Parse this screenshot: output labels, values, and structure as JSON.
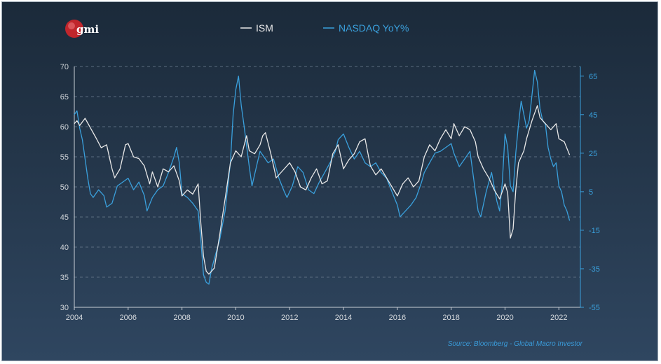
{
  "logo": {
    "text": "gmi",
    "color": "#c0262c"
  },
  "source": "Source: Bloomberg - Global Macro Investor",
  "colors": {
    "ism": "#e8e8e8",
    "nasdaq": "#3aa0dc",
    "left_axis": "#d0d4d8",
    "right_axis": "#3aa0dc",
    "grid": "#5b6d80"
  },
  "chart_data": {
    "type": "line",
    "x_ticks": [
      "2004",
      "2006",
      "2008",
      "2010",
      "2012",
      "2014",
      "2016",
      "2018",
      "2020",
      "2022"
    ],
    "y_left_ticks": [
      "30",
      "35",
      "40",
      "45",
      "50",
      "55",
      "60",
      "65",
      "70"
    ],
    "y_right_ticks": [
      "-55",
      "-35",
      "-15",
      "5",
      "25",
      "45",
      "65"
    ],
    "ylim_left": [
      30,
      70
    ],
    "ylim_right": [
      -55,
      70
    ],
    "xlim": [
      2004,
      2022.8
    ],
    "grid": "horizontal dashed",
    "legend": "top-center",
    "series": [
      {
        "name": "ISM",
        "axis": "left",
        "points": [
          [
            2004.0,
            60.5
          ],
          [
            2004.1,
            61.0
          ],
          [
            2004.2,
            60.2
          ],
          [
            2004.4,
            61.4
          ],
          [
            2004.6,
            59.8
          ],
          [
            2004.8,
            58.2
          ],
          [
            2005.0,
            56.5
          ],
          [
            2005.2,
            57.0
          ],
          [
            2005.4,
            53.0
          ],
          [
            2005.5,
            51.5
          ],
          [
            2005.7,
            53.0
          ],
          [
            2005.9,
            57.0
          ],
          [
            2006.0,
            57.2
          ],
          [
            2006.2,
            55.0
          ],
          [
            2006.4,
            54.7
          ],
          [
            2006.6,
            53.5
          ],
          [
            2006.8,
            50.5
          ],
          [
            2006.9,
            52.5
          ],
          [
            2007.1,
            50.0
          ],
          [
            2007.3,
            53.0
          ],
          [
            2007.5,
            52.5
          ],
          [
            2007.7,
            53.5
          ],
          [
            2007.9,
            51.0
          ],
          [
            2008.0,
            48.5
          ],
          [
            2008.2,
            49.5
          ],
          [
            2008.4,
            48.8
          ],
          [
            2008.6,
            50.5
          ],
          [
            2008.7,
            44.0
          ],
          [
            2008.8,
            38.5
          ],
          [
            2008.9,
            36.0
          ],
          [
            2009.0,
            35.5
          ],
          [
            2009.2,
            36.5
          ],
          [
            2009.4,
            42.0
          ],
          [
            2009.6,
            48.0
          ],
          [
            2009.8,
            54.0
          ],
          [
            2010.0,
            56.0
          ],
          [
            2010.2,
            55.0
          ],
          [
            2010.4,
            58.5
          ],
          [
            2010.5,
            56.0
          ],
          [
            2010.7,
            55.5
          ],
          [
            2010.9,
            57.0
          ],
          [
            2011.0,
            58.5
          ],
          [
            2011.1,
            59.0
          ],
          [
            2011.3,
            55.5
          ],
          [
            2011.5,
            51.5
          ],
          [
            2011.7,
            52.5
          ],
          [
            2011.9,
            53.5
          ],
          [
            2012.0,
            54.0
          ],
          [
            2012.2,
            52.5
          ],
          [
            2012.4,
            50.0
          ],
          [
            2012.6,
            49.5
          ],
          [
            2012.8,
            51.5
          ],
          [
            2013.0,
            53.0
          ],
          [
            2013.2,
            50.5
          ],
          [
            2013.4,
            51.0
          ],
          [
            2013.6,
            55.5
          ],
          [
            2013.8,
            57.0
          ],
          [
            2014.0,
            53.0
          ],
          [
            2014.2,
            54.5
          ],
          [
            2014.4,
            55.5
          ],
          [
            2014.6,
            57.5
          ],
          [
            2014.8,
            58.0
          ],
          [
            2015.0,
            53.5
          ],
          [
            2015.2,
            52.0
          ],
          [
            2015.4,
            53.0
          ],
          [
            2015.6,
            51.5
          ],
          [
            2015.8,
            50.0
          ],
          [
            2016.0,
            48.5
          ],
          [
            2016.2,
            50.5
          ],
          [
            2016.4,
            51.5
          ],
          [
            2016.6,
            50.0
          ],
          [
            2016.8,
            51.0
          ],
          [
            2017.0,
            55.0
          ],
          [
            2017.2,
            57.0
          ],
          [
            2017.4,
            56.0
          ],
          [
            2017.6,
            58.0
          ],
          [
            2017.8,
            59.5
          ],
          [
            2018.0,
            58.0
          ],
          [
            2018.1,
            60.5
          ],
          [
            2018.3,
            58.5
          ],
          [
            2018.5,
            60.0
          ],
          [
            2018.7,
            59.5
          ],
          [
            2018.9,
            57.5
          ],
          [
            2019.0,
            55.0
          ],
          [
            2019.2,
            53.0
          ],
          [
            2019.4,
            51.5
          ],
          [
            2019.6,
            49.5
          ],
          [
            2019.8,
            48.0
          ],
          [
            2020.0,
            50.5
          ],
          [
            2020.1,
            49.0
          ],
          [
            2020.2,
            41.5
          ],
          [
            2020.3,
            43.0
          ],
          [
            2020.4,
            49.5
          ],
          [
            2020.5,
            54.0
          ],
          [
            2020.7,
            56.0
          ],
          [
            2020.8,
            58.0
          ],
          [
            2021.0,
            61.0
          ],
          [
            2021.2,
            63.5
          ],
          [
            2021.3,
            61.5
          ],
          [
            2021.5,
            60.5
          ],
          [
            2021.7,
            59.5
          ],
          [
            2021.9,
            60.5
          ],
          [
            2022.0,
            58.0
          ],
          [
            2022.2,
            57.5
          ],
          [
            2022.4,
            55.3
          ]
        ]
      },
      {
        "name": "NASDAQ YoY%",
        "axis": "right",
        "points": [
          [
            2004.0,
            45.0
          ],
          [
            2004.1,
            47.0
          ],
          [
            2004.2,
            38.0
          ],
          [
            2004.3,
            32.0
          ],
          [
            2004.4,
            22.0
          ],
          [
            2004.5,
            12.0
          ],
          [
            2004.6,
            4.0
          ],
          [
            2004.7,
            2.0
          ],
          [
            2004.9,
            6.0
          ],
          [
            2005.1,
            3.0
          ],
          [
            2005.2,
            -3.0
          ],
          [
            2005.4,
            -1.0
          ],
          [
            2005.6,
            8.0
          ],
          [
            2005.8,
            10.0
          ],
          [
            2006.0,
            12.0
          ],
          [
            2006.2,
            6.0
          ],
          [
            2006.4,
            10.0
          ],
          [
            2006.6,
            3.0
          ],
          [
            2006.7,
            -5.0
          ],
          [
            2006.9,
            2.0
          ],
          [
            2007.1,
            6.0
          ],
          [
            2007.3,
            8.0
          ],
          [
            2007.5,
            15.0
          ],
          [
            2007.7,
            23.0
          ],
          [
            2007.8,
            28.0
          ],
          [
            2007.9,
            20.0
          ],
          [
            2008.0,
            4.0
          ],
          [
            2008.2,
            2.0
          ],
          [
            2008.4,
            -1.0
          ],
          [
            2008.6,
            -5.0
          ],
          [
            2008.7,
            -20.0
          ],
          [
            2008.8,
            -38.0
          ],
          [
            2008.9,
            -42.0
          ],
          [
            2009.0,
            -43.0
          ],
          [
            2009.1,
            -35.0
          ],
          [
            2009.2,
            -30.0
          ],
          [
            2009.4,
            -20.0
          ],
          [
            2009.6,
            -5.0
          ],
          [
            2009.8,
            20.0
          ],
          [
            2009.9,
            45.0
          ],
          [
            2010.0,
            58.0
          ],
          [
            2010.1,
            65.0
          ],
          [
            2010.2,
            50.0
          ],
          [
            2010.3,
            40.0
          ],
          [
            2010.5,
            18.0
          ],
          [
            2010.6,
            8.0
          ],
          [
            2010.8,
            20.0
          ],
          [
            2010.9,
            26.0
          ],
          [
            2011.0,
            24.0
          ],
          [
            2011.2,
            20.0
          ],
          [
            2011.4,
            22.0
          ],
          [
            2011.6,
            12.0
          ],
          [
            2011.8,
            5.0
          ],
          [
            2011.9,
            2.0
          ],
          [
            2012.1,
            8.0
          ],
          [
            2012.3,
            18.0
          ],
          [
            2012.5,
            15.0
          ],
          [
            2012.7,
            6.0
          ],
          [
            2012.9,
            4.0
          ],
          [
            2013.1,
            10.0
          ],
          [
            2013.3,
            15.0
          ],
          [
            2013.5,
            20.0
          ],
          [
            2013.7,
            26.0
          ],
          [
            2013.8,
            32.0
          ],
          [
            2014.0,
            35.0
          ],
          [
            2014.2,
            28.0
          ],
          [
            2014.4,
            22.0
          ],
          [
            2014.6,
            26.0
          ],
          [
            2014.8,
            20.0
          ],
          [
            2015.0,
            18.0
          ],
          [
            2015.2,
            20.0
          ],
          [
            2015.4,
            15.0
          ],
          [
            2015.6,
            12.0
          ],
          [
            2015.8,
            5.0
          ],
          [
            2016.0,
            -2.0
          ],
          [
            2016.1,
            -8.0
          ],
          [
            2016.3,
            -5.0
          ],
          [
            2016.5,
            -2.0
          ],
          [
            2016.7,
            2.0
          ],
          [
            2016.9,
            10.0
          ],
          [
            2017.0,
            15.0
          ],
          [
            2017.2,
            20.0
          ],
          [
            2017.4,
            25.0
          ],
          [
            2017.6,
            26.0
          ],
          [
            2017.8,
            28.0
          ],
          [
            2018.0,
            30.0
          ],
          [
            2018.1,
            25.0
          ],
          [
            2018.3,
            18.0
          ],
          [
            2018.5,
            22.0
          ],
          [
            2018.7,
            26.0
          ],
          [
            2018.9,
            5.0
          ],
          [
            2019.0,
            -5.0
          ],
          [
            2019.1,
            -8.0
          ],
          [
            2019.3,
            5.0
          ],
          [
            2019.5,
            15.0
          ],
          [
            2019.7,
            0.0
          ],
          [
            2019.8,
            -5.0
          ],
          [
            2019.9,
            10.0
          ],
          [
            2020.0,
            35.0
          ],
          [
            2020.1,
            28.0
          ],
          [
            2020.2,
            8.0
          ],
          [
            2020.3,
            5.0
          ],
          [
            2020.4,
            25.0
          ],
          [
            2020.5,
            40.0
          ],
          [
            2020.6,
            52.0
          ],
          [
            2020.7,
            45.0
          ],
          [
            2020.8,
            38.0
          ],
          [
            2020.9,
            42.0
          ],
          [
            2021.0,
            55.0
          ],
          [
            2021.1,
            68.0
          ],
          [
            2021.2,
            62.0
          ],
          [
            2021.3,
            48.0
          ],
          [
            2021.4,
            42.0
          ],
          [
            2021.5,
            40.0
          ],
          [
            2021.6,
            28.0
          ],
          [
            2021.7,
            22.0
          ],
          [
            2021.8,
            18.0
          ],
          [
            2021.9,
            20.0
          ],
          [
            2022.0,
            8.0
          ],
          [
            2022.1,
            5.0
          ],
          [
            2022.2,
            -2.0
          ],
          [
            2022.3,
            -5.0
          ],
          [
            2022.4,
            -10.0
          ]
        ]
      }
    ]
  }
}
